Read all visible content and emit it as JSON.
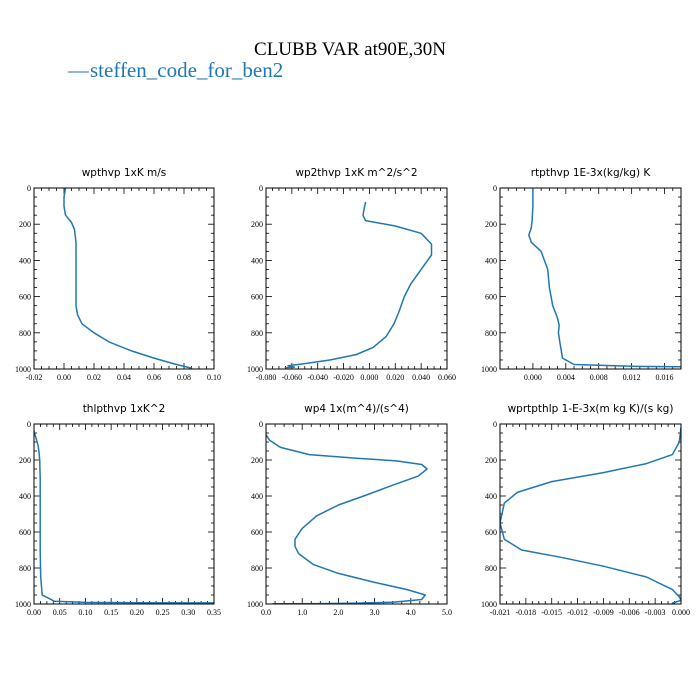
{
  "title": "CLUBB VAR at90E,30N",
  "legend": {
    "symbol": "—",
    "label": "steffen_code_for_ben2",
    "color": "#1f77b4"
  },
  "chart_data": [
    {
      "type": "line",
      "title": "wpthvp   1xK m/s",
      "xlim": [
        -0.02,
        0.1
      ],
      "ylim": [
        1000,
        0
      ],
      "xticks": [
        -0.02,
        0.0,
        0.02,
        0.04,
        0.06,
        0.08,
        0.1
      ],
      "xtick_labels": [
        "-0.02",
        "0.00",
        "0.02",
        "0.04",
        "0.06",
        "0.08",
        "0.10"
      ],
      "yticks": [
        0,
        200,
        400,
        600,
        800,
        1000
      ],
      "ytick_labels": [
        "0",
        "200",
        "400",
        "600",
        "800",
        "1000"
      ],
      "series": [
        {
          "x": [
            0.001,
            0.0,
            0.0,
            0.001,
            0.005,
            0.007,
            0.008,
            0.008,
            0.008,
            0.008,
            0.008,
            0.009,
            0.012,
            0.02,
            0.03,
            0.045,
            0.06,
            0.075,
            0.085
          ],
          "y": [
            0,
            50,
            100,
            150,
            190,
            230,
            300,
            400,
            500,
            600,
            650,
            700,
            750,
            800,
            850,
            900,
            940,
            975,
            995
          ]
        }
      ]
    },
    {
      "type": "line",
      "title": "wp2thvp   1xK m^2/s^2",
      "xlim": [
        -0.08,
        0.06
      ],
      "ylim": [
        1000,
        0
      ],
      "xticks": [
        -0.08,
        -0.06,
        -0.04,
        -0.02,
        0.0,
        0.02,
        0.04,
        0.06
      ],
      "xtick_labels": [
        "-0.080",
        "-0.060",
        "-0.040",
        "-0.020",
        "0.000",
        "0.020",
        "0.040",
        "0.060"
      ],
      "yticks": [
        0,
        200,
        400,
        600,
        800,
        1000
      ],
      "ytick_labels": [
        "0",
        "200",
        "400",
        "600",
        "800",
        "1000"
      ],
      "series": [
        {
          "x": [
            -0.003,
            -0.004,
            -0.005,
            -0.003,
            0.02,
            0.04,
            0.048,
            0.048,
            0.04,
            0.032,
            0.027,
            0.023,
            0.019,
            0.013,
            0.003,
            -0.01,
            -0.03,
            -0.05,
            -0.063,
            -0.058,
            -0.065
          ],
          "y": [
            80,
            110,
            150,
            180,
            210,
            250,
            310,
            370,
            450,
            530,
            600,
            680,
            750,
            820,
            880,
            920,
            950,
            970,
            982,
            990,
            992
          ]
        }
      ]
    },
    {
      "type": "line",
      "title": "rtpthvp   1E-3x(kg/kg) K",
      "xlim": [
        -0.004,
        0.018
      ],
      "ylim": [
        1000,
        0
      ],
      "xticks": [
        0.0,
        0.004,
        0.008,
        0.012,
        0.016
      ],
      "xtick_labels": [
        "0.000",
        "0.004",
        "0.008",
        "0.012",
        "0.016"
      ],
      "yticks": [
        0,
        200,
        400,
        600,
        800,
        1000
      ],
      "ytick_labels": [
        "0",
        "200",
        "400",
        "600",
        "800",
        "1000"
      ],
      "series": [
        {
          "x": [
            0.0,
            0.0,
            -0.0001,
            -0.0002,
            -0.0005,
            -0.0002,
            0.001,
            0.0018,
            0.002,
            0.0024,
            0.003,
            0.0032,
            0.0031,
            0.0033,
            0.0036,
            0.005,
            0.012,
            0.018
          ],
          "y": [
            0,
            100,
            180,
            220,
            260,
            300,
            350,
            450,
            550,
            650,
            720,
            760,
            800,
            860,
            940,
            975,
            985,
            988
          ]
        }
      ]
    },
    {
      "type": "line",
      "title": "thlpthvp   1xK^2",
      "xlim": [
        0.0,
        0.35
      ],
      "ylim": [
        1000,
        0
      ],
      "xticks": [
        0.0,
        0.05,
        0.1,
        0.15,
        0.2,
        0.25,
        0.3,
        0.35
      ],
      "xtick_labels": [
        "0.00",
        "0.05",
        "0.10",
        "0.15",
        "0.20",
        "0.25",
        "0.30",
        "0.35"
      ],
      "yticks": [
        0,
        200,
        400,
        600,
        800,
        1000
      ],
      "ytick_labels": [
        "0",
        "200",
        "400",
        "600",
        "800",
        "1000"
      ],
      "series": [
        {
          "x": [
            0.0,
            0.004,
            0.008,
            0.01,
            0.011,
            0.012,
            0.012,
            0.012,
            0.012,
            0.012,
            0.013,
            0.016,
            0.04,
            0.1,
            0.2,
            0.3,
            0.35
          ],
          "y": [
            40,
            80,
            120,
            160,
            200,
            300,
            400,
            500,
            600,
            700,
            850,
            950,
            985,
            991,
            993,
            994,
            994
          ]
        }
      ]
    },
    {
      "type": "line",
      "title": "wp4   1x(m^4)/(s^4)",
      "xlim": [
        0.0,
        5.0
      ],
      "ylim": [
        1000,
        0
      ],
      "xticks": [
        0.0,
        1.0,
        2.0,
        3.0,
        4.0,
        5.0
      ],
      "xtick_labels": [
        "0.0",
        "1.0",
        "2.0",
        "3.0",
        "4.0",
        "5.0"
      ],
      "yticks": [
        0,
        200,
        400,
        600,
        800,
        1000
      ],
      "ytick_labels": [
        "0",
        "200",
        "400",
        "600",
        "800",
        "1000"
      ],
      "series": [
        {
          "x": [
            0.0,
            0.1,
            0.4,
            1.2,
            2.5,
            3.6,
            4.3,
            4.45,
            4.2,
            3.5,
            2.7,
            2.0,
            1.4,
            1.0,
            0.8,
            0.8,
            0.9,
            1.3,
            2.0,
            3.0,
            3.9,
            4.4,
            4.3,
            3.5,
            2.5,
            1.5,
            0.5,
            0.2
          ],
          "y": [
            60,
            90,
            130,
            170,
            190,
            205,
            225,
            250,
            290,
            340,
            400,
            450,
            510,
            580,
            640,
            680,
            720,
            780,
            830,
            880,
            920,
            950,
            975,
            990,
            995,
            998,
            999,
            999
          ]
        }
      ]
    },
    {
      "type": "line",
      "title": "wprtpthlp   1-E-3x(m kg K)/(s kg)",
      "xlim": [
        -0.021,
        0.0
      ],
      "ylim": [
        1000,
        0
      ],
      "xticks": [
        -0.021,
        -0.018,
        -0.015,
        -0.012,
        -0.009,
        -0.006,
        -0.003,
        0.0
      ],
      "xtick_labels": [
        "-0.021",
        "-0.018",
        "-0.015",
        "-0.012",
        "-0.009",
        "-0.006",
        "-0.003",
        "0.000"
      ],
      "yticks": [
        0,
        200,
        400,
        600,
        800,
        1000
      ],
      "ytick_labels": [
        "0",
        "200",
        "400",
        "600",
        "800",
        "1000"
      ],
      "series": [
        {
          "x": [
            0.0,
            -0.0002,
            -0.001,
            -0.004,
            -0.009,
            -0.015,
            -0.019,
            -0.0205,
            -0.021,
            -0.0205,
            -0.0185,
            -0.014,
            -0.009,
            -0.004,
            -0.001,
            -0.0002,
            0.0,
            -0.001
          ],
          "y": [
            20,
            100,
            170,
            220,
            270,
            320,
            380,
            440,
            550,
            640,
            700,
            740,
            790,
            850,
            920,
            960,
            980,
            995
          ]
        }
      ]
    }
  ]
}
